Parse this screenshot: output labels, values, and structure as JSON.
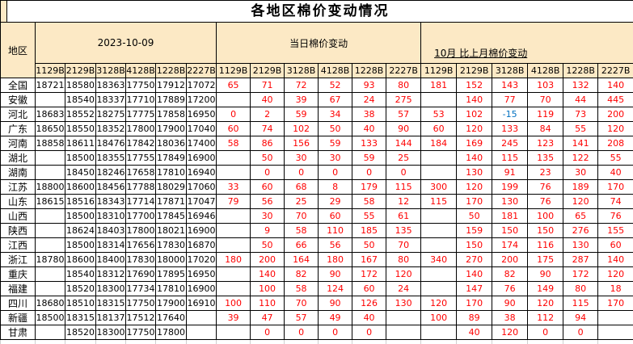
{
  "page_title": "各地区棉价变动情况",
  "colors": {
    "header_bg": "#FCE9C5",
    "change_positive_text": "#FE0000",
    "change_negative_text": "#0070C0",
    "price_text": "#000000",
    "border": "#000000"
  },
  "table": {
    "corner_label": "地区",
    "groups": [
      {
        "label": "2023-10-09",
        "columns": [
          "1129B",
          "2129B",
          "3128B",
          "4128B",
          "1228B",
          "2227B"
        ]
      },
      {
        "label": "当日棉价变动",
        "columns": [
          "1129B",
          "2129B",
          "3128B",
          "4128B",
          "1228B",
          "2227B"
        ]
      },
      {
        "label": "10月 比上月棉价变动",
        "columns": [
          "1129B",
          "2129B",
          "3128B",
          "4128B",
          "1228B",
          "2227B"
        ]
      }
    ],
    "rows": [
      {
        "region": "全国",
        "prices": [
          "18721",
          "18580",
          "18363",
          "17750",
          "17912",
          "17072"
        ],
        "daily": [
          "65",
          "71",
          "72",
          "52",
          "93",
          "80"
        ],
        "monthly": [
          "181",
          "152",
          "143",
          "103",
          "132",
          "140"
        ]
      },
      {
        "region": "安徽",
        "prices": [
          "",
          "18540",
          "18337",
          "17710",
          "17889",
          "17200"
        ],
        "daily": [
          "",
          "40",
          "39",
          "67",
          "24",
          "275"
        ],
        "monthly": [
          "",
          "140",
          "77",
          "70",
          "44",
          "445"
        ]
      },
      {
        "region": "河北",
        "prices": [
          "18683",
          "18552",
          "18275",
          "17775",
          "17858",
          "16950"
        ],
        "daily": [
          "0",
          "2",
          "59",
          "34",
          "38",
          "57"
        ],
        "monthly": [
          "53",
          "102",
          "-15",
          "119",
          "73",
          "200"
        ]
      },
      {
        "region": "广东",
        "prices": [
          "18650",
          "18550",
          "18352",
          "17800",
          "17900",
          "17040"
        ],
        "daily": [
          "60",
          "74",
          "102",
          "50",
          "40",
          "90"
        ],
        "monthly": [
          "60",
          "120",
          "133",
          "84",
          "55",
          "120"
        ]
      },
      {
        "region": "河南",
        "prices": [
          "18858",
          "18611",
          "18476",
          "17842",
          "18036",
          "17400"
        ],
        "daily": [
          "58",
          "86",
          "156",
          "59",
          "133",
          "144"
        ],
        "monthly": [
          "184",
          "169",
          "245",
          "123",
          "141",
          "208"
        ]
      },
      {
        "region": "湖北",
        "prices": [
          "",
          "18500",
          "18355",
          "17755",
          "17849",
          "16900"
        ],
        "daily": [
          "",
          "50",
          "30",
          "30",
          "59",
          "25"
        ],
        "monthly": [
          "",
          "140",
          "115",
          "135",
          "122",
          "55"
        ]
      },
      {
        "region": "湖南",
        "prices": [
          "",
          "18450",
          "18246",
          "17658",
          "17810",
          "16940"
        ],
        "daily": [
          "",
          "0",
          "0",
          "0",
          "0",
          "0"
        ],
        "monthly": [
          "",
          "130",
          "91",
          "23",
          "30",
          "40"
        ]
      },
      {
        "region": "江苏",
        "prices": [
          "18800",
          "18600",
          "18456",
          "17788",
          "18029",
          "17060"
        ],
        "daily": [
          "33",
          "60",
          "68",
          "8",
          "179",
          "115"
        ],
        "monthly": [
          "300",
          "120",
          "199",
          "76",
          "189",
          "170"
        ]
      },
      {
        "region": "山东",
        "prices": [
          "18615",
          "18516",
          "18343",
          "17714",
          "17871",
          "17047"
        ],
        "daily": [
          "79",
          "56",
          "25",
          "29",
          "58",
          "12"
        ],
        "monthly": [
          "115",
          "170",
          "130",
          "76",
          "120",
          "74"
        ]
      },
      {
        "region": "山西",
        "prices": [
          "",
          "18500",
          "18310",
          "17700",
          "17845",
          "16946"
        ],
        "daily": [
          "",
          "30",
          "70",
          "60",
          "55",
          "61"
        ],
        "monthly": [
          "",
          "50",
          "181",
          "100",
          "65",
          "76"
        ]
      },
      {
        "region": "陕西",
        "prices": [
          "",
          "18624",
          "18403",
          "17800",
          "18021",
          "16900"
        ],
        "daily": [
          "",
          "9",
          "58",
          "110",
          "185",
          "135"
        ],
        "monthly": [
          "",
          "159",
          "150",
          "150",
          "276",
          "155"
        ]
      },
      {
        "region": "江西",
        "prices": [
          "",
          "18500",
          "18314",
          "17656",
          "17830",
          "16870"
        ],
        "daily": [
          "",
          "50",
          "66",
          "56",
          "50",
          "70"
        ],
        "monthly": [
          "",
          "150",
          "174",
          "116",
          "130",
          "60"
        ]
      },
      {
        "region": "浙江",
        "prices": [
          "18780",
          "18600",
          "18400",
          "17830",
          "18000",
          "17020"
        ],
        "daily": [
          "180",
          "200",
          "164",
          "180",
          "167",
          "80"
        ],
        "monthly": [
          "340",
          "270",
          "200",
          "175",
          "287",
          "140"
        ]
      },
      {
        "region": "重庆",
        "prices": [
          "",
          "18540",
          "18312",
          "17690",
          "17895",
          "16950"
        ],
        "daily": [
          "",
          "140",
          "82",
          "90",
          "172",
          "120"
        ],
        "monthly": [
          "",
          "140",
          "82",
          "90",
          "172",
          "120"
        ]
      },
      {
        "region": "福建",
        "prices": [
          "",
          "18520",
          "18300",
          "17734",
          "17810",
          "16900"
        ],
        "daily": [
          "",
          "100",
          "58",
          "124",
          "60",
          "24"
        ],
        "monthly": [
          "",
          "147",
          "76",
          "149",
          "80",
          "18"
        ]
      },
      {
        "region": "四川",
        "prices": [
          "18680",
          "18510",
          "18315",
          "17750",
          "17900",
          "16910"
        ],
        "daily": [
          "100",
          "110",
          "70",
          "90",
          "126",
          "130"
        ],
        "monthly": [
          "120",
          "170",
          "90",
          "120",
          "115",
          "170"
        ]
      },
      {
        "region": "新疆",
        "prices": [
          "18500",
          "18315",
          "18137",
          "17512",
          "17640",
          ""
        ],
        "daily": [
          "39",
          "47",
          "57",
          "49",
          "40",
          ""
        ],
        "monthly": [
          "100",
          "89",
          "38",
          "112",
          "94",
          ""
        ]
      },
      {
        "region": "甘肃",
        "prices": [
          "",
          "18520",
          "18300",
          "17750",
          "17800",
          ""
        ],
        "daily": [
          "",
          "0",
          "0",
          "0",
          "0",
          ""
        ],
        "monthly": [
          "",
          "40",
          "120",
          "0",
          "0",
          ""
        ]
      }
    ]
  }
}
